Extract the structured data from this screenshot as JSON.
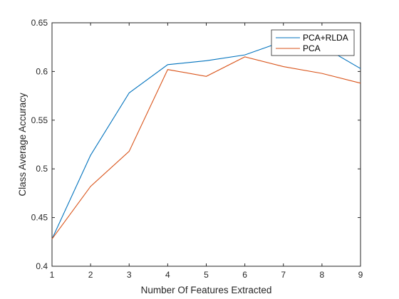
{
  "chart_data": {
    "type": "line",
    "title": "",
    "xlabel": "Number Of Features Extracted",
    "ylabel": "Class Average Accuracy",
    "xlim": [
      1,
      9
    ],
    "ylim": [
      0.4,
      0.65
    ],
    "xticks": [
      1,
      2,
      3,
      4,
      5,
      6,
      7,
      8,
      9
    ],
    "xtick_labels": [
      "1",
      "2",
      "3",
      "4",
      "5",
      "6",
      "7",
      "8",
      "9"
    ],
    "yticks": [
      0.4,
      0.45,
      0.5,
      0.55,
      0.6,
      0.65
    ],
    "ytick_labels": [
      "0.4",
      "0.45",
      "0.5",
      "0.55",
      "0.6",
      "0.65"
    ],
    "grid": false,
    "legend_position": "top-right",
    "x": [
      1,
      2,
      3,
      4,
      5,
      6,
      7,
      8,
      9
    ],
    "series": [
      {
        "name": "PCA+RLDA",
        "color": "#0072BD",
        "values": [
          0.428,
          0.514,
          0.578,
          0.607,
          0.611,
          0.617,
          0.631,
          0.626,
          0.603
        ]
      },
      {
        "name": "PCA",
        "color": "#D95319",
        "values": [
          0.428,
          0.482,
          0.518,
          0.602,
          0.595,
          0.615,
          0.605,
          0.598,
          0.588
        ]
      }
    ]
  }
}
